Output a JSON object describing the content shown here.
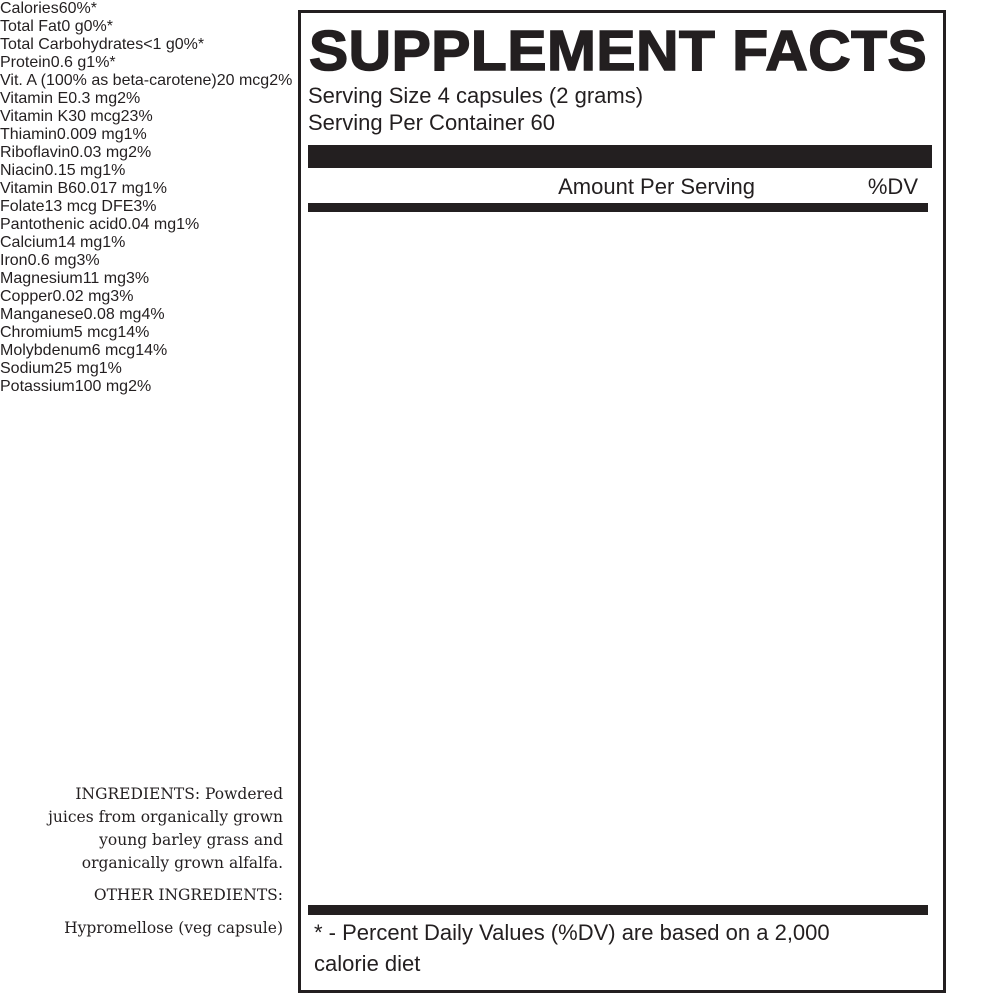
{
  "ingredients": {
    "lines": [
      "INGREDIENTS: Powdered",
      "juices from organically grown",
      "young barley grass and",
      "organically grown alfalfa."
    ],
    "other_title": "OTHER INGREDIENTS:",
    "other": "Hypromellose (veg capsule)"
  },
  "label": {
    "title": "SUPPLEMENT FACTS",
    "serving_size": "Serving Size 4 capsules (2 grams)",
    "servings_per_container": "Serving Per Container 60",
    "header": {
      "amount": "Amount Per Serving",
      "dv": "%DV"
    },
    "rows": [
      [
        "Calories",
        "6",
        "0%*"
      ],
      [
        "Total Fat",
        "0 g",
        "0%*"
      ],
      [
        "Total Carbohydrates",
        "<1 g",
        "0%*"
      ],
      [
        "Protein",
        "0.6 g",
        "1%*"
      ],
      [
        "Vit. A (100% as beta-carotene)",
        "20 mcg",
        "2%"
      ],
      [
        "Vitamin E",
        "0.3 mg",
        "2%"
      ],
      [
        "Vitamin K",
        "30 mcg",
        "23%"
      ],
      [
        "Thiamin",
        "0.009 mg",
        "1%"
      ],
      [
        "Riboflavin",
        "0.03 mg",
        "2%"
      ],
      [
        "Niacin",
        "0.15 mg",
        "1%"
      ],
      [
        "Vitamin B6",
        "0.017 mg",
        "1%"
      ],
      [
        "Folate",
        "13 mcg DFE",
        "3%"
      ],
      [
        "Pantothenic acid",
        "0.04 mg",
        "1%"
      ],
      [
        "Calcium",
        "14 mg",
        "1%"
      ],
      [
        "Iron",
        "0.6 mg",
        "3%"
      ],
      [
        "Magnesium",
        "11 mg",
        "3%"
      ],
      [
        "Copper",
        "0.02 mg",
        "3%"
      ],
      [
        "Manganese",
        "0.08 mg",
        "4%"
      ],
      [
        "Chromium",
        "5 mcg",
        "14%"
      ],
      [
        "Molybdenum",
        "6 mcg",
        "14%"
      ],
      [
        "Sodium",
        "25 mg",
        "1%"
      ],
      [
        "Potassium",
        "100 mg",
        "2%"
      ]
    ],
    "footnote_lines": [
      "* - Percent Daily Values (%DV) are based on a 2,000",
      "calorie diet"
    ]
  }
}
